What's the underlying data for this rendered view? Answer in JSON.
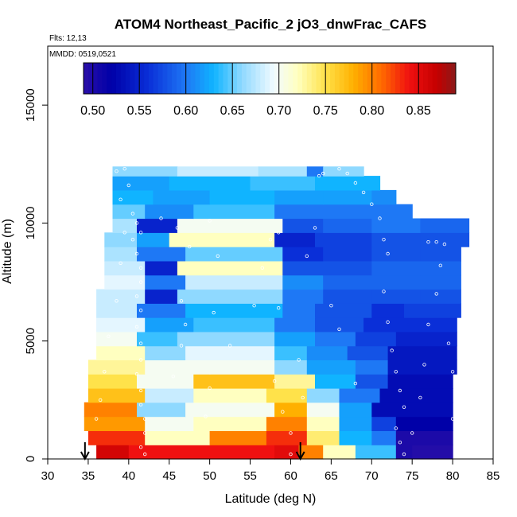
{
  "chart_data": {
    "type": "heatmap",
    "title": "ATOM4 Northeast_Pacific_2 jO3_dnwFrac_CAFS",
    "flights_label": "Flts: 12,13",
    "dates_label": "MMDD: 0519,0521",
    "xlabel": "Latitude (deg N)",
    "ylabel": "Altitude (m)",
    "xlim": [
      30,
      85
    ],
    "ylim": [
      0,
      17500
    ],
    "x_ticks": [
      "30",
      "35",
      "40",
      "45",
      "50",
      "55",
      "60",
      "65",
      "70",
      "75",
      "80",
      "85"
    ],
    "y_ticks": [
      "0",
      "5000",
      "10000",
      "15000"
    ],
    "colorbar": {
      "range": [
        0.49,
        0.89
      ],
      "ticks": [
        "0.50",
        "0.55",
        "0.60",
        "0.65",
        "0.70",
        "0.75",
        "0.80",
        "0.85"
      ],
      "stops": [
        {
          "v": 0.49,
          "c": "#2a0fa8"
        },
        {
          "v": 0.52,
          "c": "#0000a8"
        },
        {
          "v": 0.56,
          "c": "#0a2fd8"
        },
        {
          "v": 0.6,
          "c": "#1e78f5"
        },
        {
          "v": 0.63,
          "c": "#10b4ff"
        },
        {
          "v": 0.66,
          "c": "#8fd9ff"
        },
        {
          "v": 0.695,
          "c": "#f2fbff"
        },
        {
          "v": 0.72,
          "c": "#ffffc0"
        },
        {
          "v": 0.75,
          "c": "#ffe24a"
        },
        {
          "v": 0.78,
          "c": "#ffb000"
        },
        {
          "v": 0.81,
          "c": "#ff6a00"
        },
        {
          "v": 0.84,
          "c": "#f01010"
        },
        {
          "v": 0.87,
          "c": "#c40000"
        },
        {
          "v": 0.89,
          "c": "#8a1a1a"
        }
      ]
    },
    "profile_markers_lat": [
      34.6,
      61.2
    ],
    "curtain_rows": [
      {
        "alt": [
          0,
          600
        ],
        "segments": [
          [
            36,
            40,
            0.86
          ],
          [
            40,
            50,
            0.84
          ],
          [
            50,
            58,
            0.84
          ],
          [
            58,
            61,
            0.85
          ],
          [
            61,
            64,
            0.8
          ],
          [
            64,
            68,
            0.72
          ],
          [
            68,
            73,
            0.64
          ],
          [
            73,
            75,
            0.5
          ],
          [
            75,
            80,
            0.495
          ]
        ]
      },
      {
        "alt": [
          600,
          1200
        ],
        "segments": [
          [
            35,
            42,
            0.83
          ],
          [
            42,
            50,
            0.72
          ],
          [
            50,
            57,
            0.8
          ],
          [
            57,
            62,
            0.83
          ],
          [
            62,
            66,
            0.74
          ],
          [
            66,
            70,
            0.63
          ],
          [
            70,
            73,
            0.6
          ],
          [
            73,
            76,
            0.5
          ],
          [
            76,
            80,
            0.5
          ]
        ]
      },
      {
        "alt": [
          1200,
          1800
        ],
        "segments": [
          [
            34.5,
            42,
            0.79
          ],
          [
            42,
            48,
            0.7
          ],
          [
            48,
            57,
            0.72
          ],
          [
            57,
            62,
            0.8
          ],
          [
            62,
            66,
            0.72
          ],
          [
            66,
            70,
            0.62
          ],
          [
            70,
            73,
            0.57
          ],
          [
            73,
            80,
            0.52
          ]
        ]
      },
      {
        "alt": [
          1800,
          2400
        ],
        "segments": [
          [
            34.5,
            41,
            0.8
          ],
          [
            41,
            47,
            0.66
          ],
          [
            47,
            58,
            0.7
          ],
          [
            58,
            62,
            0.78
          ],
          [
            62,
            66,
            0.7
          ],
          [
            66,
            70,
            0.62
          ],
          [
            70,
            80,
            0.53
          ]
        ]
      },
      {
        "alt": [
          2400,
          3000
        ],
        "segments": [
          [
            35,
            42,
            0.77
          ],
          [
            42,
            48,
            0.68
          ],
          [
            48,
            57,
            0.72
          ],
          [
            57,
            62,
            0.75
          ],
          [
            62,
            66,
            0.66
          ],
          [
            66,
            71,
            0.6
          ],
          [
            71,
            80,
            0.53
          ]
        ]
      },
      {
        "alt": [
          3000,
          3600
        ],
        "segments": [
          [
            35,
            41,
            0.75
          ],
          [
            41,
            48,
            0.7
          ],
          [
            48,
            58,
            0.77
          ],
          [
            58,
            63,
            0.73
          ],
          [
            63,
            68,
            0.63
          ],
          [
            68,
            72,
            0.58
          ],
          [
            72,
            80,
            0.53
          ]
        ]
      },
      {
        "alt": [
          3600,
          4200
        ],
        "segments": [
          [
            35,
            42,
            0.73
          ],
          [
            42,
            50,
            0.7
          ],
          [
            50,
            58,
            0.7
          ],
          [
            58,
            62,
            0.66
          ],
          [
            62,
            68,
            0.62
          ],
          [
            68,
            72,
            0.6
          ],
          [
            72,
            80.5,
            0.54
          ]
        ]
      },
      {
        "alt": [
          4200,
          4800
        ],
        "segments": [
          [
            36,
            42,
            0.72
          ],
          [
            42,
            47,
            0.66
          ],
          [
            47,
            58,
            0.69
          ],
          [
            58,
            62,
            0.64
          ],
          [
            62,
            67,
            0.61
          ],
          [
            67,
            72,
            0.58
          ],
          [
            72,
            80.5,
            0.54
          ]
        ]
      },
      {
        "alt": [
          4800,
          5400
        ],
        "segments": [
          [
            36,
            41,
            0.7
          ],
          [
            41,
            46,
            0.64
          ],
          [
            46,
            58,
            0.66
          ],
          [
            58,
            63,
            0.62
          ],
          [
            63,
            68,
            0.6
          ],
          [
            68,
            73,
            0.57
          ],
          [
            73,
            80.5,
            0.55
          ]
        ]
      },
      {
        "alt": [
          5400,
          6000
        ],
        "segments": [
          [
            36,
            42,
            0.69
          ],
          [
            42,
            48,
            0.62
          ],
          [
            48,
            58,
            0.64
          ],
          [
            58,
            63,
            0.6
          ],
          [
            63,
            69,
            0.58
          ],
          [
            69,
            74,
            0.56
          ],
          [
            74,
            80.5,
            0.56
          ]
        ]
      },
      {
        "alt": [
          6000,
          6600
        ],
        "segments": [
          [
            36,
            41,
            0.68
          ],
          [
            41,
            47,
            0.6
          ],
          [
            47,
            59,
            0.63
          ],
          [
            59,
            63,
            0.6
          ],
          [
            63,
            70,
            0.58
          ],
          [
            70,
            74,
            0.56
          ],
          [
            74,
            81,
            0.57
          ]
        ]
      },
      {
        "alt": [
          6600,
          7200
        ],
        "segments": [
          [
            36,
            42,
            0.68
          ],
          [
            42,
            46,
            0.55
          ],
          [
            46,
            59,
            0.66
          ],
          [
            59,
            64,
            0.6
          ],
          [
            64,
            70,
            0.58
          ],
          [
            70,
            76,
            0.58
          ],
          [
            76,
            81,
            0.58
          ]
        ]
      },
      {
        "alt": [
          7200,
          7800
        ],
        "segments": [
          [
            37,
            42,
            0.69
          ],
          [
            42,
            47,
            0.6
          ],
          [
            47,
            59,
            0.68
          ],
          [
            59,
            64,
            0.61
          ],
          [
            64,
            70,
            0.59
          ],
          [
            70,
            76,
            0.59
          ],
          [
            76,
            81,
            0.59
          ]
        ]
      },
      {
        "alt": [
          7800,
          8400
        ],
        "segments": [
          [
            37,
            42,
            0.68
          ],
          [
            42,
            46,
            0.55
          ],
          [
            46,
            59,
            0.72
          ],
          [
            59,
            64,
            0.58
          ],
          [
            64,
            70,
            0.58
          ],
          [
            70,
            76,
            0.59
          ],
          [
            76,
            81,
            0.59
          ]
        ]
      },
      {
        "alt": [
          8400,
          9000
        ],
        "segments": [
          [
            37,
            41,
            0.67
          ],
          [
            41,
            47,
            0.6
          ],
          [
            47,
            59,
            0.65
          ],
          [
            59,
            64,
            0.56
          ],
          [
            64,
            70,
            0.57
          ],
          [
            70,
            76,
            0.58
          ],
          [
            76,
            81,
            0.58
          ]
        ]
      },
      {
        "alt": [
          9000,
          9600
        ],
        "segments": [
          [
            37,
            41,
            0.66
          ],
          [
            41,
            45,
            0.62
          ],
          [
            45,
            58,
            0.72
          ],
          [
            58,
            63,
            0.55
          ],
          [
            63,
            70,
            0.57
          ],
          [
            70,
            76,
            0.58
          ],
          [
            76,
            82,
            0.58
          ]
        ]
      },
      {
        "alt": [
          9600,
          10200
        ],
        "segments": [
          [
            38,
            41,
            0.67
          ],
          [
            41,
            46,
            0.55
          ],
          [
            46,
            59,
            0.7
          ],
          [
            59,
            64,
            0.58
          ],
          [
            64,
            70,
            0.59
          ],
          [
            70,
            76,
            0.6
          ],
          [
            76,
            82,
            0.59
          ]
        ]
      },
      {
        "alt": [
          10200,
          10800
        ],
        "segments": [
          [
            38,
            42,
            0.65
          ],
          [
            42,
            48,
            0.61
          ],
          [
            48,
            58,
            0.64
          ],
          [
            58,
            64,
            0.6
          ],
          [
            64,
            70,
            0.6
          ],
          [
            70,
            75,
            0.6
          ]
        ]
      },
      {
        "alt": [
          10800,
          11400
        ],
        "segments": [
          [
            38,
            43,
            0.63
          ],
          [
            43,
            50,
            0.62
          ],
          [
            50,
            58,
            0.63
          ],
          [
            58,
            64,
            0.62
          ],
          [
            64,
            70,
            0.62
          ],
          [
            70,
            73,
            0.61
          ]
        ]
      },
      {
        "alt": [
          11400,
          12000
        ],
        "segments": [
          [
            38,
            45,
            0.62
          ],
          [
            45,
            55,
            0.63
          ],
          [
            55,
            63,
            0.64
          ],
          [
            63,
            71,
            0.63
          ]
        ]
      },
      {
        "alt": [
          12000,
          12400
        ],
        "segments": [
          [
            38,
            46,
            0.66
          ],
          [
            46,
            56,
            0.68
          ],
          [
            56,
            62,
            0.67
          ],
          [
            62,
            64,
            0.6
          ],
          [
            64,
            69,
            0.66
          ]
        ]
      }
    ],
    "sample_points": [
      [
        38.5,
        12200
      ],
      [
        39.5,
        12300
      ],
      [
        40.0,
        11600
      ],
      [
        39.0,
        11000
      ],
      [
        40.5,
        10400
      ],
      [
        41.0,
        10000
      ],
      [
        41.5,
        9600
      ],
      [
        40.5,
        9300
      ],
      [
        41.0,
        8700
      ],
      [
        41.5,
        8100
      ],
      [
        41.5,
        7500
      ],
      [
        41.0,
        6900
      ],
      [
        41.5,
        6300
      ],
      [
        41.0,
        5600
      ],
      [
        41.5,
        4900
      ],
      [
        41.5,
        4200
      ],
      [
        41.0,
        3600
      ],
      [
        41.5,
        2900
      ],
      [
        41.5,
        2300
      ],
      [
        42.0,
        1700
      ],
      [
        42.0,
        1100
      ],
      [
        41.5,
        500
      ],
      [
        42.0,
        200
      ],
      [
        44.0,
        10200
      ],
      [
        46.0,
        9800
      ],
      [
        47.5,
        9000
      ],
      [
        46.5,
        6700
      ],
      [
        47.0,
        5700
      ],
      [
        46.5,
        4800
      ],
      [
        45.5,
        3500
      ],
      [
        50.0,
        10100
      ],
      [
        51.0,
        8600
      ],
      [
        50.5,
        6200
      ],
      [
        50.0,
        3000
      ],
      [
        49.5,
        1800
      ],
      [
        52.5,
        4800
      ],
      [
        55.5,
        6500
      ],
      [
        56.5,
        8100
      ],
      [
        57.5,
        9300
      ],
      [
        58.0,
        3300
      ],
      [
        59.0,
        2000
      ],
      [
        60.0,
        1100
      ],
      [
        60.0,
        200
      ],
      [
        58.5,
        6400
      ],
      [
        58.5,
        9600
      ],
      [
        61.0,
        4200
      ],
      [
        61.5,
        2600
      ],
      [
        62.0,
        8600
      ],
      [
        63.0,
        9800
      ],
      [
        63.5,
        12000
      ],
      [
        64.0,
        12100
      ],
      [
        66.0,
        12300
      ],
      [
        67.0,
        12100
      ],
      [
        68.0,
        11700
      ],
      [
        69.0,
        11300
      ],
      [
        70.0,
        10800
      ],
      [
        71.0,
        10200
      ],
      [
        71.5,
        9300
      ],
      [
        72.0,
        8700
      ],
      [
        71.5,
        7100
      ],
      [
        72.0,
        5800
      ],
      [
        72.5,
        4600
      ],
      [
        73.0,
        3700
      ],
      [
        73.5,
        2900
      ],
      [
        74.0,
        2200
      ],
      [
        73.0,
        1300
      ],
      [
        73.5,
        700
      ],
      [
        74.0,
        200
      ],
      [
        75.0,
        1100
      ],
      [
        76.0,
        2600
      ],
      [
        76.5,
        4000
      ],
      [
        77.0,
        5700
      ],
      [
        78.0,
        7000
      ],
      [
        78.5,
        8200
      ],
      [
        79.0,
        9100
      ],
      [
        77.0,
        9200
      ],
      [
        78.0,
        9200
      ],
      [
        79.5,
        4900
      ],
      [
        80.0,
        3700
      ],
      [
        80.0,
        1700
      ],
      [
        36.0,
        1700
      ],
      [
        36.5,
        2500
      ],
      [
        37.0,
        3700
      ],
      [
        37.5,
        5200
      ],
      [
        38.5,
        6700
      ],
      [
        39.0,
        8300
      ],
      [
        39.5,
        9600
      ],
      [
        66.0,
        5500
      ],
      [
        65.0,
        6500
      ],
      [
        68.0,
        3200
      ]
    ]
  }
}
